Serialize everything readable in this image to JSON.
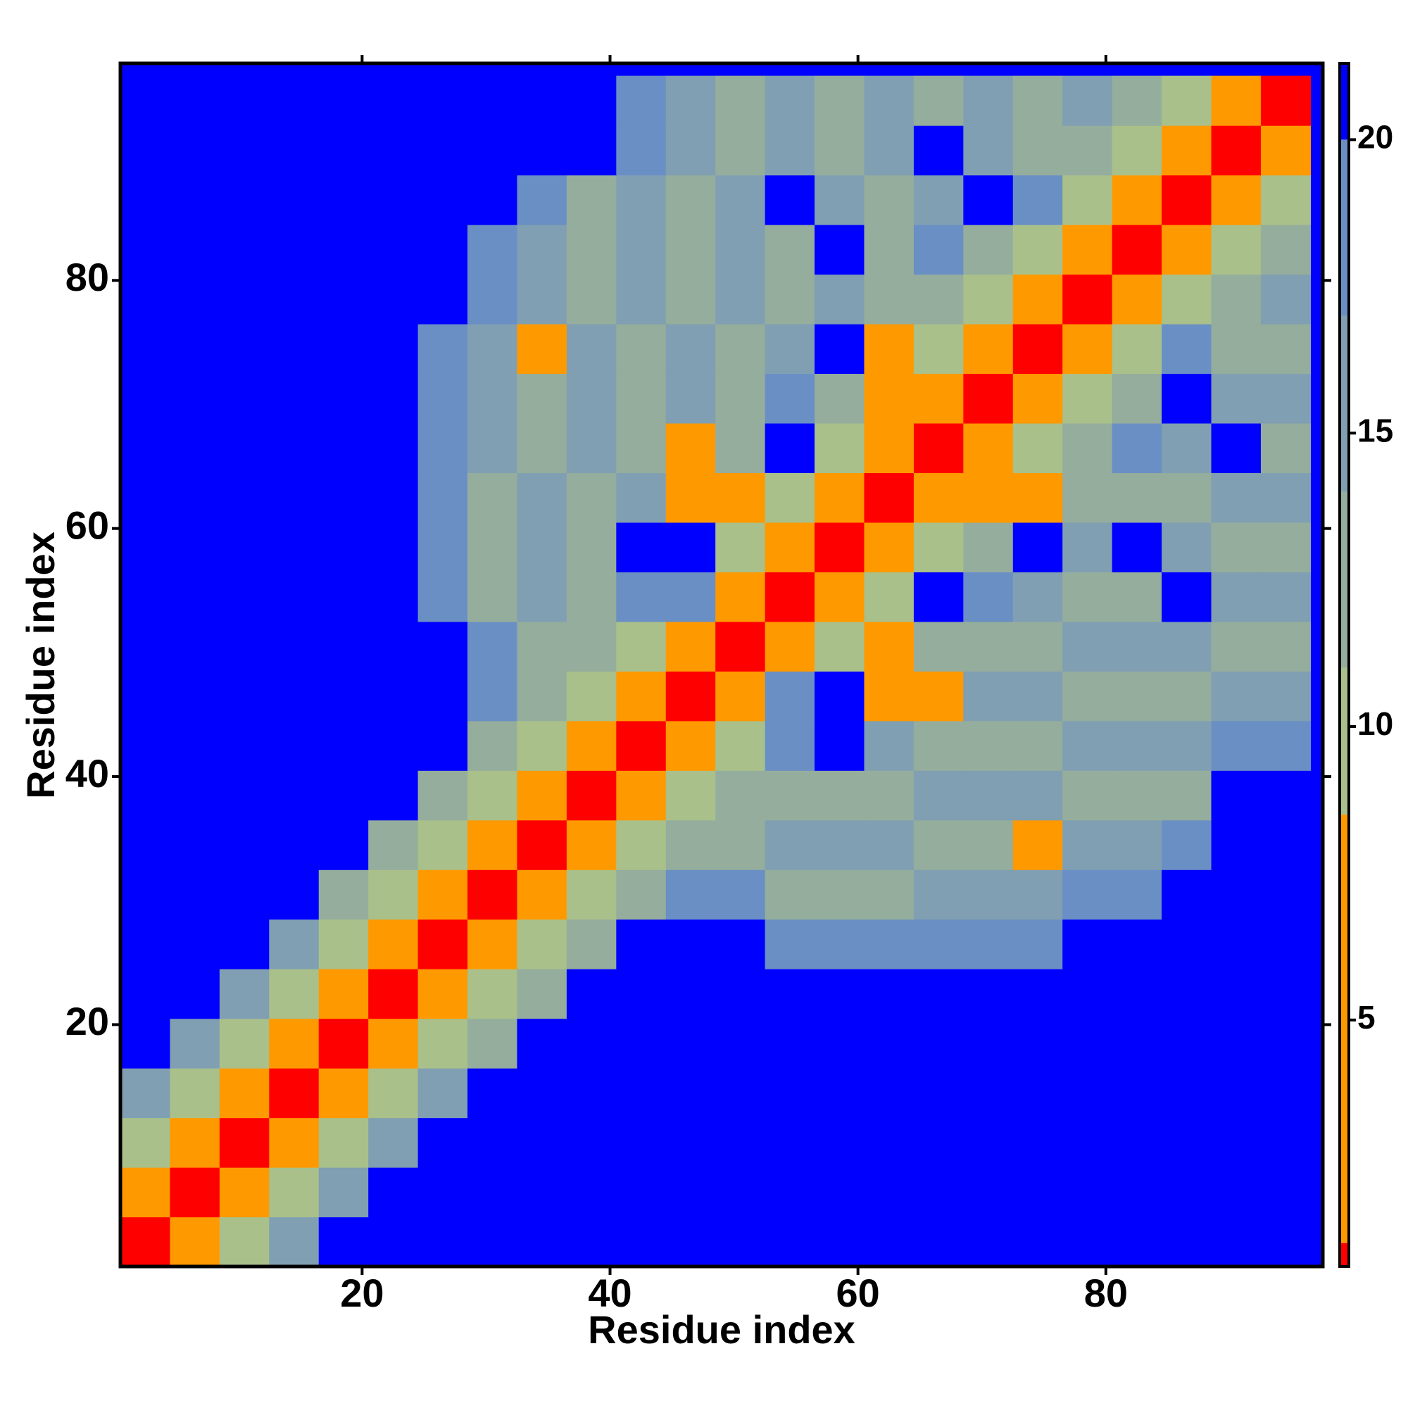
{
  "chart_data": {
    "type": "heatmap",
    "x_label": "Residue index",
    "y_label": "Residue index",
    "x": [
      2.5,
      6.5,
      10.5,
      14.5,
      18.5,
      22.5,
      26.5,
      30.5,
      34.5,
      38.5,
      42.5,
      46.5,
      50.5,
      54.5,
      58.5,
      62.5,
      66.5,
      70.5,
      74.5,
      78.5,
      82.5,
      86.5,
      90.5,
      94.5
    ],
    "y": [
      2.5,
      6.5,
      10.5,
      14.5,
      18.5,
      22.5,
      26.5,
      30.5,
      34.5,
      38.5,
      42.5,
      46.5,
      50.5,
      54.5,
      58.5,
      62.5,
      66.5,
      70.5,
      74.5,
      78.5,
      82.5,
      86.5,
      90.5,
      94.5
    ],
    "z": [
      [
        1,
        7,
        11,
        16,
        21,
        21,
        21,
        21,
        21,
        21,
        21,
        21,
        21,
        21,
        21,
        21,
        21,
        21,
        21,
        21,
        21,
        21,
        21,
        21
      ],
      [
        7,
        1,
        7,
        11,
        16,
        21,
        21,
        21,
        21,
        21,
        21,
        21,
        21,
        21,
        21,
        21,
        21,
        21,
        21,
        21,
        21,
        21,
        21,
        21
      ],
      [
        11,
        7,
        1,
        7,
        11,
        16,
        21,
        21,
        21,
        21,
        21,
        21,
        21,
        21,
        21,
        21,
        21,
        21,
        21,
        21,
        21,
        21,
        21,
        21
      ],
      [
        16,
        11,
        7,
        1,
        7,
        11,
        16,
        21,
        21,
        21,
        21,
        21,
        21,
        21,
        21,
        21,
        21,
        21,
        21,
        21,
        21,
        21,
        21,
        21
      ],
      [
        21,
        16,
        11,
        7,
        1,
        7,
        11,
        13,
        21,
        21,
        21,
        21,
        21,
        21,
        21,
        21,
        21,
        21,
        21,
        21,
        21,
        21,
        21,
        21
      ],
      [
        21,
        21,
        16,
        11,
        7,
        1,
        7,
        10,
        13,
        21,
        21,
        21,
        21,
        21,
        21,
        21,
        21,
        21,
        21,
        21,
        21,
        21,
        21,
        21
      ],
      [
        21,
        21,
        21,
        16,
        11,
        7,
        1,
        7,
        10,
        13,
        21,
        21,
        21,
        18,
        18,
        18,
        18,
        18,
        18,
        21,
        21,
        21,
        21,
        21
      ],
      [
        21,
        21,
        21,
        21,
        13,
        10,
        7,
        1,
        7,
        10,
        13,
        18,
        18,
        14,
        13,
        12,
        17,
        16,
        15,
        18,
        18,
        21,
        21,
        21
      ],
      [
        21,
        21,
        21,
        21,
        21,
        13,
        10,
        7,
        1,
        7,
        10,
        13,
        12,
        17,
        16,
        15,
        14,
        13,
        8,
        17,
        16,
        18,
        21,
        21
      ],
      [
        21,
        21,
        21,
        21,
        21,
        21,
        13,
        10,
        7,
        1,
        7,
        10,
        13,
        14,
        13,
        12,
        17,
        16,
        15,
        14,
        13,
        12,
        21,
        21
      ],
      [
        21,
        21,
        21,
        21,
        21,
        21,
        21,
        13,
        10,
        7,
        1,
        7,
        10,
        20,
        21,
        15,
        14,
        13,
        12,
        17,
        16,
        15,
        18,
        18
      ],
      [
        21,
        21,
        21,
        21,
        21,
        21,
        21,
        18,
        13,
        10,
        7,
        1,
        7,
        20,
        21,
        7,
        7,
        16,
        15,
        14,
        13,
        12,
        17,
        16
      ],
      [
        21,
        21,
        21,
        21,
        21,
        21,
        21,
        18,
        12,
        13,
        10,
        7,
        1,
        7,
        9,
        7,
        14,
        13,
        12,
        17,
        16,
        15,
        14,
        13
      ],
      [
        21,
        21,
        21,
        21,
        21,
        21,
        18,
        14,
        17,
        14,
        20,
        20,
        7,
        1,
        7,
        10,
        21,
        20,
        15,
        14,
        13,
        21,
        17,
        16
      ],
      [
        21,
        21,
        21,
        21,
        21,
        21,
        18,
        13,
        16,
        13,
        21,
        21,
        9,
        7,
        1,
        7,
        10,
        13,
        21,
        17,
        21,
        15,
        14,
        13
      ],
      [
        21,
        21,
        21,
        21,
        21,
        21,
        18,
        12,
        15,
        12,
        15,
        7,
        7,
        10,
        7,
        1,
        7,
        7,
        7,
        14,
        13,
        12,
        17,
        16
      ],
      [
        21,
        21,
        21,
        21,
        21,
        21,
        18,
        17,
        14,
        17,
        14,
        7,
        14,
        21,
        10,
        7,
        1,
        7,
        10,
        13,
        20,
        15,
        21,
        13
      ],
      [
        21,
        21,
        21,
        21,
        21,
        21,
        18,
        16,
        13,
        16,
        13,
        16,
        13,
        20,
        13,
        7,
        7,
        1,
        7,
        10,
        13,
        21,
        17,
        16
      ],
      [
        21,
        21,
        21,
        21,
        21,
        21,
        18,
        15,
        8,
        15,
        12,
        15,
        12,
        15,
        21,
        7,
        10,
        7,
        1,
        7,
        10,
        20,
        14,
        13
      ],
      [
        21,
        21,
        21,
        21,
        21,
        21,
        21,
        18,
        17,
        14,
        17,
        14,
        17,
        14,
        17,
        14,
        13,
        10,
        7,
        1,
        7,
        10,
        13,
        16
      ],
      [
        21,
        21,
        21,
        21,
        21,
        21,
        21,
        18,
        16,
        13,
        16,
        13,
        16,
        13,
        21,
        13,
        20,
        13,
        10,
        7,
        1,
        7,
        10,
        13
      ],
      [
        21,
        21,
        21,
        21,
        21,
        21,
        21,
        21,
        18,
        12,
        15,
        12,
        15,
        21,
        15,
        12,
        15,
        21,
        20,
        10,
        7,
        1,
        7,
        10
      ],
      [
        21,
        21,
        21,
        21,
        21,
        21,
        21,
        21,
        21,
        21,
        18,
        17,
        14,
        17,
        14,
        17,
        21,
        17,
        14,
        13,
        10,
        7,
        1,
        7
      ],
      [
        21,
        21,
        21,
        21,
        21,
        21,
        21,
        21,
        21,
        21,
        18,
        16,
        13,
        16,
        13,
        16,
        13,
        16,
        13,
        16,
        13,
        10,
        7,
        1
      ]
    ],
    "xlim": [
      0.5,
      97.5
    ],
    "ylim": [
      0.5,
      97.5
    ],
    "xticks": [
      20,
      40,
      60,
      80
    ],
    "yticks": [
      20,
      40,
      60,
      80
    ],
    "background": "#0000ff",
    "colorbar": {
      "lim": [
        0.8,
        21.3
      ],
      "ticks": [
        5,
        10,
        15,
        20
      ],
      "bands": [
        {
          "from": 0.8,
          "to": 1.2,
          "color": "#ff0000"
        },
        {
          "from": 1.2,
          "to": 8.5,
          "color": "#ff9900"
        },
        {
          "from": 8.5,
          "to": 11,
          "color": "#a9c08a"
        },
        {
          "from": 11,
          "to": 14,
          "color": "#95ad9c"
        },
        {
          "from": 14,
          "to": 17,
          "color": "#809fb2"
        },
        {
          "from": 17,
          "to": 20,
          "color": "#6a8fc4"
        },
        {
          "from": 20,
          "to": 21.3,
          "color": "#0000ff"
        }
      ]
    }
  }
}
